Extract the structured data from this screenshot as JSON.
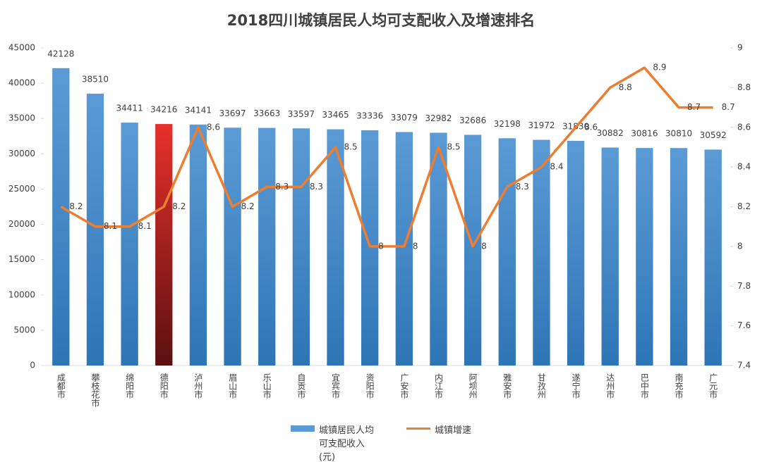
{
  "chart_data": {
    "type": "bar-line",
    "title": "2018四川城镇居民人均可支配收入及增速排名",
    "categories": [
      "成都市",
      "攀枝花市",
      "绵阳市",
      "德阳市",
      "泸州市",
      "眉山市",
      "乐山市",
      "自贡市",
      "宜宾市",
      "资阳市",
      "广安市",
      "内江市",
      "阿坝州",
      "雅安市",
      "甘孜州",
      "遂宁市",
      "达州市",
      "巴中市",
      "南充市",
      "广元市"
    ],
    "series": [
      {
        "name": "城镇居民人均可支配收入(元)",
        "type": "bar",
        "color": "#5b9bd5",
        "colors": [
          "#5b9bd5",
          "#5b9bd5",
          "#5b9bd5",
          "#e8302c",
          "#5b9bd5",
          "#5b9bd5",
          "#5b9bd5",
          "#5b9bd5",
          "#5b9bd5",
          "#5b9bd5",
          "#5b9bd5",
          "#5b9bd5",
          "#5b9bd5",
          "#5b9bd5",
          "#5b9bd5",
          "#5b9bd5",
          "#5b9bd5",
          "#5b9bd5",
          "#5b9bd5",
          "#5b9bd5"
        ],
        "values": [
          42128,
          38510,
          34411,
          34216,
          34141,
          33697,
          33663,
          33597,
          33465,
          33336,
          33079,
          32982,
          32686,
          32198,
          31972,
          31830,
          30882,
          30816,
          30810,
          30592
        ]
      },
      {
        "name": "城镇增速",
        "type": "line",
        "axis": "y2",
        "color": "#ed7d31",
        "values": [
          8.2,
          8.1,
          8.1,
          8.2,
          8.6,
          8.2,
          8.3,
          8.3,
          8.5,
          8,
          8,
          8.5,
          8,
          8.3,
          8.4,
          8.6,
          8.8,
          8.9,
          8.7,
          8.7
        ]
      }
    ],
    "ylim": [
      0,
      45000
    ],
    "yticks": [
      0,
      5000,
      10000,
      15000,
      20000,
      25000,
      30000,
      35000,
      40000,
      45000
    ],
    "y2lim": [
      7.4,
      9
    ],
    "y2ticks": [
      7.4,
      7.6,
      7.8,
      8,
      8.2,
      8.4,
      8.6,
      8.8,
      9
    ],
    "legend": "bottom"
  }
}
